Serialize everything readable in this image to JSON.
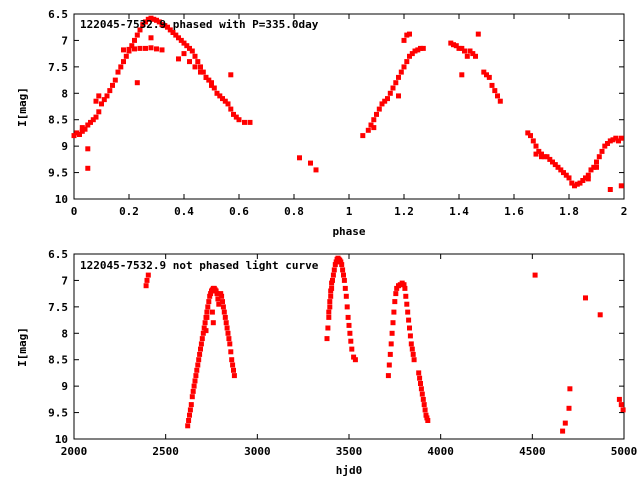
{
  "chart_data": [
    {
      "type": "scatter",
      "title": "122045-7532.9 phased with P=335.0day",
      "xlabel": "phase",
      "ylabel": "I[mag]",
      "xlim": [
        0,
        2
      ],
      "ylim": [
        10,
        6.5
      ],
      "y_inverted": true,
      "xticks": [
        "0",
        "0.2",
        "0.4",
        "0.6",
        "0.8",
        "1",
        "1.2",
        "1.4",
        "1.6",
        "1.8",
        "2"
      ],
      "yticks": [
        "6.5",
        "7",
        "7.5",
        "8",
        "8.5",
        "9",
        "9.5",
        "10"
      ],
      "marker_color": "#ff0000",
      "points": [
        [
          0.0,
          8.8
        ],
        [
          0.01,
          8.75
        ],
        [
          0.02,
          8.78
        ],
        [
          0.03,
          8.72
        ],
        [
          0.04,
          8.68
        ],
        [
          0.05,
          8.6
        ],
        [
          0.06,
          8.55
        ],
        [
          0.07,
          8.5
        ],
        [
          0.08,
          8.45
        ],
        [
          0.09,
          8.35
        ],
        [
          0.1,
          8.2
        ],
        [
          0.11,
          8.12
        ],
        [
          0.12,
          8.05
        ],
        [
          0.13,
          7.95
        ],
        [
          0.14,
          7.85
        ],
        [
          0.15,
          7.75
        ],
        [
          0.16,
          7.6
        ],
        [
          0.17,
          7.5
        ],
        [
          0.18,
          7.4
        ],
        [
          0.19,
          7.3
        ],
        [
          0.2,
          7.2
        ],
        [
          0.21,
          7.1
        ],
        [
          0.22,
          7.0
        ],
        [
          0.23,
          6.9
        ],
        [
          0.24,
          6.8
        ],
        [
          0.25,
          6.7
        ],
        [
          0.26,
          6.65
        ],
        [
          0.27,
          6.6
        ],
        [
          0.28,
          6.58
        ],
        [
          0.29,
          6.6
        ],
        [
          0.3,
          6.62
        ],
        [
          0.31,
          6.65
        ],
        [
          0.32,
          6.7
        ],
        [
          0.33,
          6.72
        ],
        [
          0.34,
          6.75
        ],
        [
          0.35,
          6.8
        ],
        [
          0.36,
          6.85
        ],
        [
          0.37,
          6.9
        ],
        [
          0.38,
          6.95
        ],
        [
          0.39,
          7.0
        ],
        [
          0.4,
          7.05
        ],
        [
          0.41,
          7.1
        ],
        [
          0.42,
          7.15
        ],
        [
          0.43,
          7.2
        ],
        [
          0.44,
          7.3
        ],
        [
          0.45,
          7.4
        ],
        [
          0.46,
          7.5
        ],
        [
          0.47,
          7.6
        ],
        [
          0.48,
          7.7
        ],
        [
          0.49,
          7.75
        ],
        [
          0.5,
          7.85
        ],
        [
          0.51,
          7.9
        ],
        [
          0.52,
          8.0
        ],
        [
          0.53,
          8.05
        ],
        [
          0.54,
          8.1
        ],
        [
          0.55,
          8.15
        ],
        [
          0.56,
          8.2
        ],
        [
          0.57,
          8.3
        ],
        [
          0.58,
          8.4
        ],
        [
          0.59,
          8.45
        ],
        [
          0.6,
          8.5
        ],
        [
          0.62,
          8.55
        ],
        [
          0.64,
          8.55
        ],
        [
          0.18,
          7.18
        ],
        [
          0.2,
          7.17
        ],
        [
          0.22,
          7.16
        ],
        [
          0.24,
          7.15
        ],
        [
          0.26,
          7.15
        ],
        [
          0.28,
          7.14
        ],
        [
          0.3,
          7.16
        ],
        [
          0.32,
          7.18
        ],
        [
          0.44,
          7.5
        ],
        [
          0.46,
          7.6
        ],
        [
          0.48,
          7.7
        ],
        [
          0.5,
          7.8
        ],
        [
          0.08,
          8.15
        ],
        [
          0.09,
          8.05
        ],
        [
          0.03,
          8.65
        ],
        [
          0.05,
          9.05
        ],
        [
          0.05,
          9.42
        ],
        [
          0.23,
          7.8
        ],
        [
          0.28,
          6.95
        ],
        [
          0.38,
          7.35
        ],
        [
          0.4,
          7.25
        ],
        [
          0.42,
          7.4
        ],
        [
          0.57,
          7.65
        ],
        [
          0.82,
          9.22
        ],
        [
          0.86,
          9.32
        ],
        [
          0.88,
          9.45
        ],
        [
          1.05,
          8.8
        ],
        [
          1.07,
          8.7
        ],
        [
          1.08,
          8.6
        ],
        [
          1.09,
          8.5
        ],
        [
          1.1,
          8.4
        ],
        [
          1.11,
          8.3
        ],
        [
          1.12,
          8.2
        ],
        [
          1.13,
          8.15
        ],
        [
          1.14,
          8.1
        ],
        [
          1.15,
          8.0
        ],
        [
          1.16,
          7.9
        ],
        [
          1.17,
          7.8
        ],
        [
          1.18,
          7.7
        ],
        [
          1.19,
          7.6
        ],
        [
          1.2,
          7.5
        ],
        [
          1.21,
          7.4
        ],
        [
          1.22,
          7.3
        ],
        [
          1.23,
          7.25
        ],
        [
          1.24,
          7.2
        ],
        [
          1.25,
          7.18
        ],
        [
          1.26,
          7.15
        ],
        [
          1.27,
          7.15
        ],
        [
          1.2,
          7.0
        ],
        [
          1.21,
          6.9
        ],
        [
          1.22,
          6.88
        ],
        [
          1.18,
          8.05
        ],
        [
          1.09,
          8.65
        ],
        [
          1.37,
          7.05
        ],
        [
          1.38,
          7.08
        ],
        [
          1.39,
          7.1
        ],
        [
          1.4,
          7.15
        ],
        [
          1.41,
          7.15
        ],
        [
          1.42,
          7.2
        ],
        [
          1.43,
          7.3
        ],
        [
          1.44,
          7.2
        ],
        [
          1.45,
          7.25
        ],
        [
          1.46,
          7.3
        ],
        [
          1.47,
          6.88
        ],
        [
          1.41,
          7.65
        ],
        [
          1.49,
          7.6
        ],
        [
          1.5,
          7.65
        ],
        [
          1.51,
          7.7
        ],
        [
          1.52,
          7.85
        ],
        [
          1.53,
          7.95
        ],
        [
          1.54,
          8.05
        ],
        [
          1.55,
          8.15
        ],
        [
          1.65,
          8.75
        ],
        [
          1.66,
          8.8
        ],
        [
          1.67,
          8.9
        ],
        [
          1.68,
          9.0
        ],
        [
          1.69,
          9.1
        ],
        [
          1.7,
          9.15
        ],
        [
          1.71,
          9.2
        ],
        [
          1.72,
          9.2
        ],
        [
          1.73,
          9.25
        ],
        [
          1.74,
          9.3
        ],
        [
          1.75,
          9.35
        ],
        [
          1.76,
          9.4
        ],
        [
          1.77,
          9.45
        ],
        [
          1.78,
          9.5
        ],
        [
          1.79,
          9.55
        ],
        [
          1.8,
          9.6
        ],
        [
          1.81,
          9.7
        ],
        [
          1.82,
          9.75
        ],
        [
          1.83,
          9.72
        ],
        [
          1.84,
          9.7
        ],
        [
          1.85,
          9.65
        ],
        [
          1.86,
          9.6
        ],
        [
          1.87,
          9.55
        ],
        [
          1.88,
          9.45
        ],
        [
          1.89,
          9.4
        ],
        [
          1.9,
          9.3
        ],
        [
          1.91,
          9.2
        ],
        [
          1.92,
          9.1
        ],
        [
          1.93,
          9.0
        ],
        [
          1.94,
          8.95
        ],
        [
          1.95,
          8.9
        ],
        [
          1.96,
          8.88
        ],
        [
          1.97,
          8.85
        ],
        [
          1.98,
          8.9
        ],
        [
          1.99,
          8.85
        ],
        [
          1.68,
          9.15
        ],
        [
          1.7,
          9.2
        ],
        [
          1.87,
          9.62
        ],
        [
          1.9,
          9.4
        ],
        [
          1.95,
          9.82
        ],
        [
          1.99,
          9.75
        ]
      ]
    },
    {
      "type": "scatter",
      "title": "122045-7532.9 not phased light curve",
      "xlabel": "hjd0",
      "ylabel": "I[mag]",
      "xlim": [
        2000,
        5000
      ],
      "ylim": [
        10,
        6.5
      ],
      "y_inverted": true,
      "xticks": [
        "2000",
        "2500",
        "3000",
        "3500",
        "4000",
        "4500",
        "5000"
      ],
      "yticks": [
        "6.5",
        "7",
        "7.5",
        "8",
        "8.5",
        "9",
        "9.5",
        "10"
      ],
      "marker_color": "#ff0000",
      "points": [
        [
          2393,
          7.1
        ],
        [
          2398,
          7.0
        ],
        [
          2405,
          6.9
        ],
        [
          2620,
          9.75
        ],
        [
          2625,
          9.65
        ],
        [
          2630,
          9.55
        ],
        [
          2635,
          9.45
        ],
        [
          2640,
          9.35
        ],
        [
          2645,
          9.2
        ],
        [
          2650,
          9.1
        ],
        [
          2655,
          9.0
        ],
        [
          2660,
          8.9
        ],
        [
          2665,
          8.8
        ],
        [
          2670,
          8.7
        ],
        [
          2675,
          8.6
        ],
        [
          2680,
          8.5
        ],
        [
          2685,
          8.4
        ],
        [
          2690,
          8.3
        ],
        [
          2695,
          8.2
        ],
        [
          2700,
          8.1
        ],
        [
          2705,
          8.0
        ],
        [
          2710,
          7.9
        ],
        [
          2715,
          7.8
        ],
        [
          2720,
          7.7
        ],
        [
          2725,
          7.6
        ],
        [
          2730,
          7.5
        ],
        [
          2735,
          7.4
        ],
        [
          2740,
          7.3
        ],
        [
          2745,
          7.25
        ],
        [
          2750,
          7.2
        ],
        [
          2755,
          7.18
        ],
        [
          2760,
          7.15
        ],
        [
          2765,
          7.15
        ],
        [
          2770,
          7.18
        ],
        [
          2775,
          7.2
        ],
        [
          2780,
          7.25
        ],
        [
          2785,
          7.35
        ],
        [
          2790,
          7.45
        ],
        [
          2800,
          7.25
        ],
        [
          2805,
          7.3
        ],
        [
          2810,
          7.4
        ],
        [
          2815,
          7.5
        ],
        [
          2820,
          7.6
        ],
        [
          2825,
          7.7
        ],
        [
          2830,
          7.8
        ],
        [
          2835,
          7.9
        ],
        [
          2840,
          8.0
        ],
        [
          2845,
          8.1
        ],
        [
          2850,
          8.2
        ],
        [
          2855,
          8.35
        ],
        [
          2860,
          8.5
        ],
        [
          2865,
          8.6
        ],
        [
          2870,
          8.7
        ],
        [
          2875,
          8.8
        ],
        [
          2760,
          7.8
        ],
        [
          2755,
          7.6
        ],
        [
          2725,
          7.7
        ],
        [
          2720,
          7.95
        ],
        [
          3380,
          8.1
        ],
        [
          3385,
          7.9
        ],
        [
          3390,
          7.7
        ],
        [
          3395,
          7.5
        ],
        [
          3400,
          7.3
        ],
        [
          3405,
          7.15
        ],
        [
          3410,
          7.0
        ],
        [
          3415,
          6.9
        ],
        [
          3420,
          6.8
        ],
        [
          3425,
          6.7
        ],
        [
          3430,
          6.65
        ],
        [
          3435,
          6.6
        ],
        [
          3440,
          6.58
        ],
        [
          3445,
          6.6
        ],
        [
          3450,
          6.62
        ],
        [
          3455,
          6.65
        ],
        [
          3460,
          6.7
        ],
        [
          3465,
          6.8
        ],
        [
          3470,
          6.9
        ],
        [
          3475,
          7.0
        ],
        [
          3480,
          7.15
        ],
        [
          3485,
          7.3
        ],
        [
          3490,
          7.5
        ],
        [
          3495,
          7.7
        ],
        [
          3500,
          7.85
        ],
        [
          3505,
          8.0
        ],
        [
          3510,
          8.15
        ],
        [
          3515,
          8.3
        ],
        [
          3525,
          8.45
        ],
        [
          3535,
          8.5
        ],
        [
          3390,
          7.6
        ],
        [
          3395,
          7.4
        ],
        [
          3400,
          7.2
        ],
        [
          3405,
          7.05
        ],
        [
          3715,
          8.8
        ],
        [
          3720,
          8.6
        ],
        [
          3725,
          8.4
        ],
        [
          3730,
          8.2
        ],
        [
          3735,
          8.0
        ],
        [
          3740,
          7.8
        ],
        [
          3745,
          7.6
        ],
        [
          3750,
          7.4
        ],
        [
          3755,
          7.25
        ],
        [
          3760,
          7.15
        ],
        [
          3770,
          7.1
        ],
        [
          3780,
          7.08
        ],
        [
          3790,
          7.05
        ],
        [
          3800,
          7.08
        ],
        [
          3805,
          7.15
        ],
        [
          3810,
          7.3
        ],
        [
          3815,
          7.45
        ],
        [
          3820,
          7.6
        ],
        [
          3825,
          7.75
        ],
        [
          3830,
          7.9
        ],
        [
          3835,
          8.05
        ],
        [
          3840,
          8.2
        ],
        [
          3845,
          8.3
        ],
        [
          3850,
          8.4
        ],
        [
          3855,
          8.5
        ],
        [
          3880,
          8.75
        ],
        [
          3885,
          8.85
        ],
        [
          3890,
          8.95
        ],
        [
          3895,
          9.05
        ],
        [
          3900,
          9.15
        ],
        [
          3905,
          9.25
        ],
        [
          3910,
          9.35
        ],
        [
          3915,
          9.45
        ],
        [
          3920,
          9.55
        ],
        [
          3925,
          9.6
        ],
        [
          3930,
          9.65
        ],
        [
          4515,
          6.9
        ],
        [
          4665,
          9.85
        ],
        [
          4680,
          9.7
        ],
        [
          4700,
          9.42
        ],
        [
          4705,
          9.05
        ],
        [
          4790,
          7.33
        ],
        [
          4870,
          7.65
        ],
        [
          4975,
          9.25
        ],
        [
          4985,
          9.35
        ],
        [
          4995,
          9.45
        ]
      ]
    }
  ]
}
